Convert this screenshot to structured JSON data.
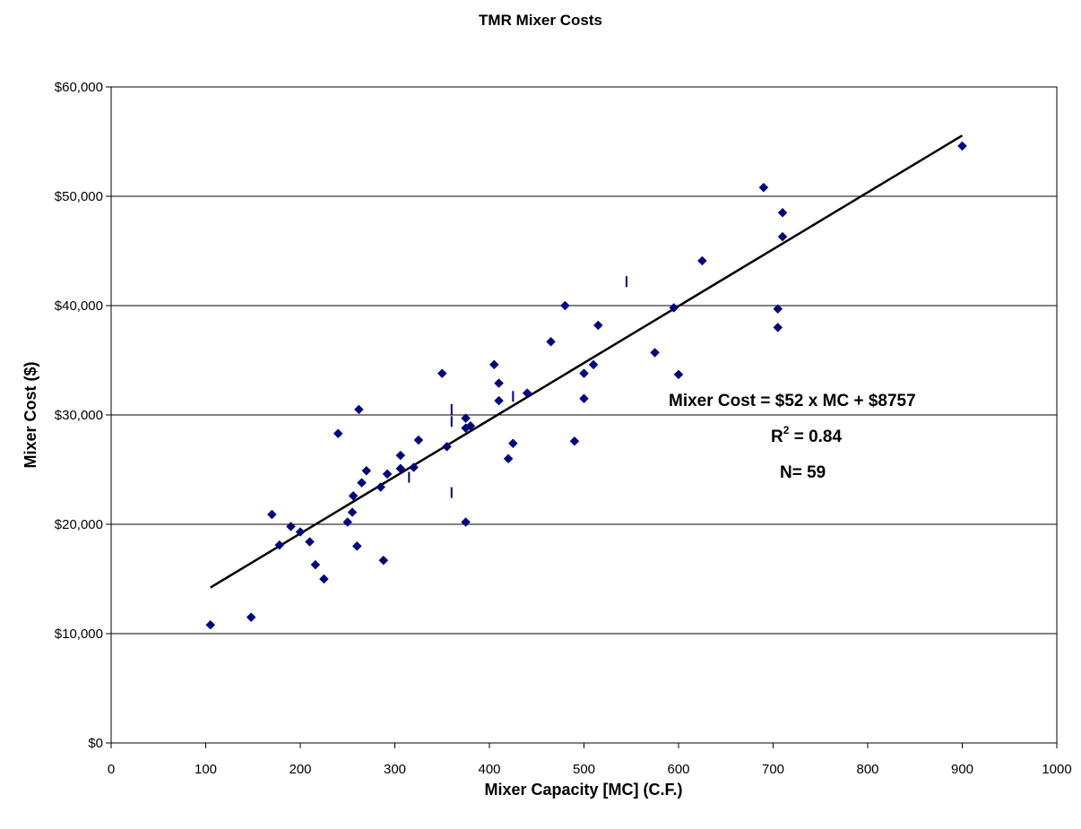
{
  "chart_data": {
    "type": "scatter",
    "title": "TMR Mixer Costs",
    "xlabel": "Mixer Capacity [MC] (C.F.)",
    "ylabel": "Mixer Cost ($)",
    "xlim": [
      0,
      1000
    ],
    "ylim": [
      0,
      60000
    ],
    "x_ticks": [
      0,
      100,
      200,
      300,
      400,
      500,
      600,
      700,
      800,
      900,
      1000
    ],
    "x_tick_labels": [
      "0",
      "100",
      "200",
      "300",
      "400",
      "500",
      "600",
      "700",
      "800",
      "900",
      "1000"
    ],
    "y_ticks": [
      0,
      10000,
      20000,
      30000,
      40000,
      50000,
      60000
    ],
    "y_tick_labels": [
      "$0",
      "$10,000",
      "$20,000",
      "$30,000",
      "$40,000",
      "$50,000",
      "$60,000"
    ],
    "grid": "horizontal",
    "marker_color": "#000080",
    "trendline_color": "#000000",
    "series": [
      {
        "marker": "diamond",
        "points": [
          [
            105,
            10800
          ],
          [
            148,
            11500
          ],
          [
            170,
            20900
          ],
          [
            178,
            18100
          ],
          [
            190,
            19800
          ],
          [
            200,
            19300
          ],
          [
            210,
            18400
          ],
          [
            216,
            16300
          ],
          [
            225,
            15000
          ],
          [
            240,
            28300
          ],
          [
            250,
            20200
          ],
          [
            255,
            21100
          ],
          [
            256,
            22600
          ],
          [
            260,
            18000
          ],
          [
            262,
            30500
          ],
          [
            265,
            23800
          ],
          [
            270,
            24900
          ],
          [
            285,
            23400
          ],
          [
            288,
            16700
          ],
          [
            292,
            24600
          ],
          [
            306,
            25100
          ],
          [
            306,
            26300
          ],
          [
            320,
            25200
          ],
          [
            325,
            27700
          ],
          [
            350,
            33800
          ],
          [
            355,
            27100
          ],
          [
            375,
            20200
          ],
          [
            375,
            29700
          ],
          [
            375,
            28800
          ],
          [
            380,
            29000
          ],
          [
            405,
            34600
          ],
          [
            410,
            32900
          ],
          [
            410,
            31300
          ],
          [
            420,
            26000
          ],
          [
            425,
            27400
          ],
          [
            440,
            32000
          ],
          [
            465,
            36700
          ],
          [
            480,
            40000
          ],
          [
            490,
            27600
          ],
          [
            500,
            33800
          ],
          [
            500,
            31500
          ],
          [
            510,
            34600
          ],
          [
            515,
            38200
          ],
          [
            575,
            35700
          ],
          [
            595,
            39800
          ],
          [
            600,
            33700
          ],
          [
            625,
            44100
          ],
          [
            690,
            50800
          ],
          [
            705,
            39700
          ],
          [
            705,
            38000
          ],
          [
            710,
            48500
          ],
          [
            710,
            46300
          ],
          [
            900,
            54600
          ]
        ]
      },
      {
        "marker": "dash",
        "points": [
          [
            315,
            24300
          ],
          [
            360,
            30500
          ],
          [
            360,
            29400
          ],
          [
            360,
            22900
          ],
          [
            425,
            31700
          ],
          [
            545,
            42200
          ]
        ]
      }
    ],
    "trendline": {
      "slope": 52,
      "intercept": 8757,
      "x_start": 105,
      "x_end": 900
    },
    "annotations": {
      "equation": "Mixer Cost = $52 x MC + $8757",
      "r2_prefix": "R",
      "r2_sup": "2",
      "r2_rest": " = 0.84",
      "n": "N= 59"
    }
  }
}
